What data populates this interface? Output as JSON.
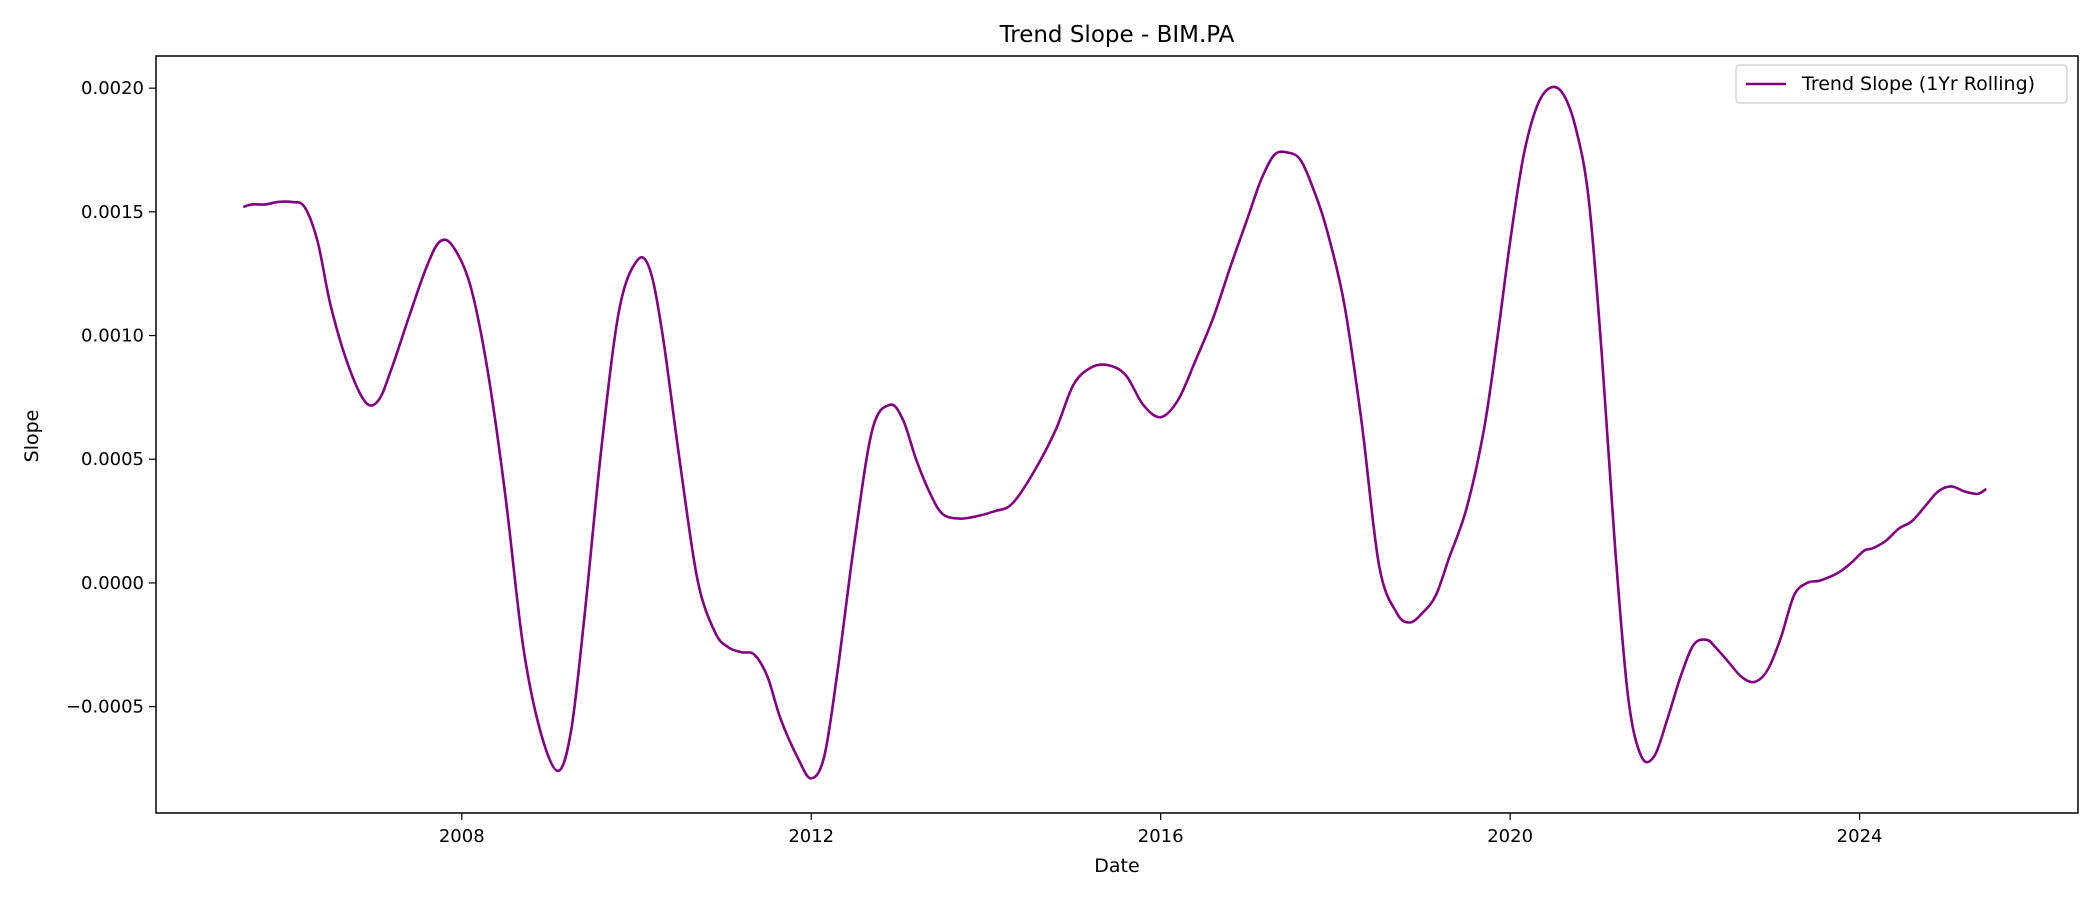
{
  "chart_data": {
    "type": "line",
    "title": "Trend Slope - BIM.PA",
    "xlabel": "Date",
    "ylabel": "Slope",
    "x_ticks": [
      2008,
      2012,
      2016,
      2020,
      2024
    ],
    "x_tick_labels": [
      "2008",
      "2012",
      "2016",
      "2020",
      "2024"
    ],
    "y_ticks": [
      -0.0005,
      0.0,
      0.0005,
      0.001,
      0.0015,
      0.002
    ],
    "y_tick_labels": [
      "−0.0005",
      "0.0000",
      "0.0005",
      "0.0010",
      "0.0015",
      "0.0020"
    ],
    "xlim": [
      2004.5,
      2026.5
    ],
    "ylim": [
      -0.00093,
      0.00213
    ],
    "grid": false,
    "legend": "top-right",
    "color": "#800080",
    "series": [
      {
        "name": "Trend Slope (1Yr Rolling)",
        "x": [
          2005.5,
          2005.6,
          2005.75,
          2005.9,
          2006.05,
          2006.2,
          2006.35,
          2006.5,
          2006.7,
          2006.9,
          2007.05,
          2007.2,
          2007.4,
          2007.6,
          2007.75,
          2007.9,
          2008.1,
          2008.3,
          2008.5,
          2008.7,
          2008.9,
          2009.1,
          2009.25,
          2009.4,
          2009.6,
          2009.8,
          2010.0,
          2010.15,
          2010.3,
          2010.5,
          2010.7,
          2010.9,
          2011.05,
          2011.2,
          2011.35,
          2011.5,
          2011.65,
          2011.85,
          2012.0,
          2012.15,
          2012.3,
          2012.5,
          2012.7,
          2012.9,
          2013.05,
          2013.2,
          2013.35,
          2013.5,
          2013.7,
          2013.9,
          2014.1,
          2014.3,
          2014.55,
          2014.8,
          2015.0,
          2015.2,
          2015.4,
          2015.6,
          2015.8,
          2016.0,
          2016.2,
          2016.4,
          2016.6,
          2016.8,
          2017.0,
          2017.15,
          2017.3,
          2017.45,
          2017.6,
          2017.75,
          2017.9,
          2018.1,
          2018.3,
          2018.5,
          2018.7,
          2018.85,
          2019.0,
          2019.15,
          2019.3,
          2019.5,
          2019.7,
          2019.85,
          2020.0,
          2020.15,
          2020.3,
          2020.45,
          2020.6,
          2020.75,
          2020.9,
          2021.05,
          2021.2,
          2021.35,
          2021.5,
          2021.65,
          2021.8,
          2021.95,
          2022.1,
          2022.25,
          2022.35,
          2022.5,
          2022.65,
          2022.8,
          2022.95,
          2023.1,
          2023.25,
          2023.4,
          2023.55,
          2023.75,
          2023.9,
          2024.05,
          2024.15,
          2024.3,
          2024.45,
          2024.6,
          2024.75,
          2024.9,
          2025.05,
          2025.2,
          2025.35,
          2025.45
        ],
        "y": [
          0.00152,
          0.00153,
          0.00153,
          0.00154,
          0.00154,
          0.00152,
          0.00138,
          0.00112,
          0.00088,
          0.00073,
          0.00074,
          0.00087,
          0.00108,
          0.00128,
          0.00138,
          0.00136,
          0.0012,
          0.00085,
          0.00035,
          -0.00025,
          -0.0006,
          -0.00076,
          -0.0006,
          -0.00015,
          0.00055,
          0.0011,
          0.0013,
          0.00127,
          0.001,
          0.00048,
          1e-05,
          -0.0002,
          -0.00026,
          -0.00028,
          -0.00029,
          -0.00038,
          -0.00055,
          -0.00071,
          -0.00079,
          -0.0007,
          -0.00036,
          0.00018,
          0.00062,
          0.00072,
          0.00066,
          0.0005,
          0.00037,
          0.00028,
          0.00026,
          0.00027,
          0.00029,
          0.00032,
          0.00045,
          0.00062,
          0.0008,
          0.00087,
          0.00088,
          0.00084,
          0.00072,
          0.00067,
          0.00074,
          0.0009,
          0.00107,
          0.00128,
          0.00148,
          0.00163,
          0.00173,
          0.00174,
          0.00171,
          0.00159,
          0.00143,
          0.00113,
          0.00065,
          7e-05,
          -0.00012,
          -0.00016,
          -0.00012,
          -5e-05,
          0.0001,
          0.0003,
          0.00062,
          0.00098,
          0.00138,
          0.00172,
          0.00192,
          0.002,
          0.00198,
          0.00184,
          0.00155,
          0.00092,
          0.00015,
          -0.00046,
          -0.0007,
          -0.0007,
          -0.00055,
          -0.00038,
          -0.00025,
          -0.00023,
          -0.00026,
          -0.00032,
          -0.00038,
          -0.0004,
          -0.00035,
          -0.00022,
          -5e-05,
          0.0,
          1e-05,
          4e-05,
          8e-05,
          0.00013,
          0.00014,
          0.00017,
          0.00022,
          0.00025,
          0.00031,
          0.00037,
          0.00039,
          0.00037,
          0.00036,
          0.00038
        ]
      }
    ]
  }
}
